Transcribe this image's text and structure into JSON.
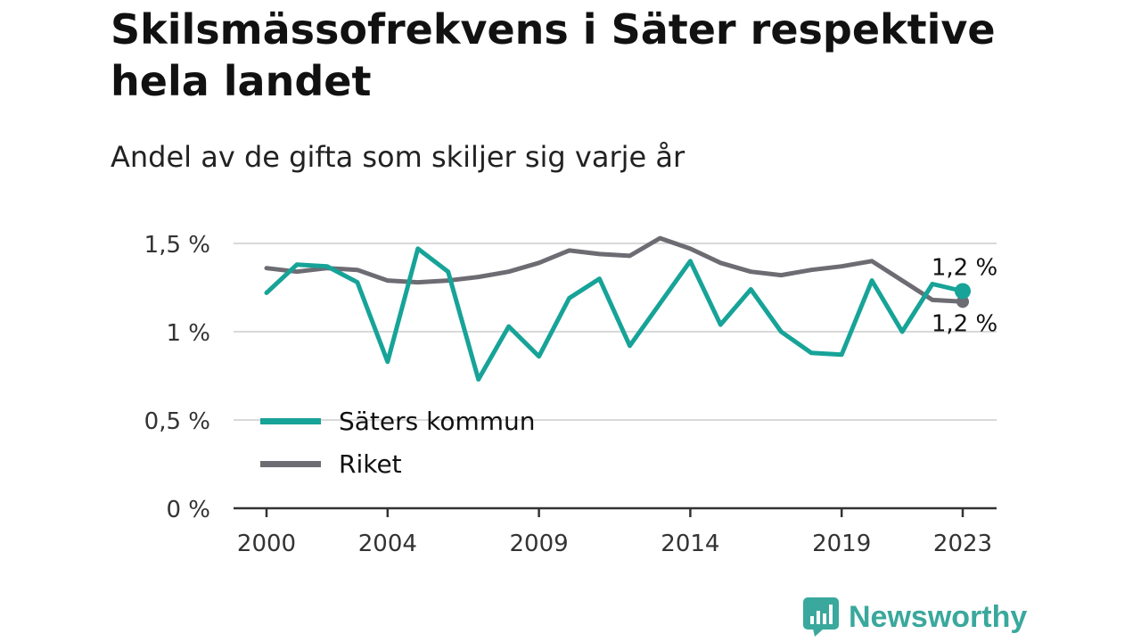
{
  "header": {
    "title": "Skilsmässofrekvens i Säter respektive hela landet",
    "subtitle": "Andel av de gifta som skiljer sig varje år"
  },
  "brand": {
    "name": "Newsworthy",
    "icon": "newsworthy-logo-icon",
    "color": "#3aa89c"
  },
  "chart_data": {
    "type": "line",
    "x": [
      2000,
      2001,
      2002,
      2003,
      2004,
      2005,
      2006,
      2007,
      2008,
      2009,
      2010,
      2011,
      2012,
      2013,
      2014,
      2015,
      2016,
      2017,
      2018,
      2019,
      2020,
      2021,
      2022,
      2023
    ],
    "x_tick_values": [
      2000,
      2004,
      2009,
      2014,
      2019,
      2023
    ],
    "x_tick_labels": [
      "2000",
      "2004",
      "2009",
      "2014",
      "2019",
      "2023"
    ],
    "ylim": [
      0,
      1.5
    ],
    "y_tick_values": [
      0,
      0.5,
      1,
      1.5
    ],
    "y_tick_labels": [
      "0 %",
      "0,5 %",
      "1 %",
      "1,5 %"
    ],
    "grid": true,
    "legend_placement": "bottom-left",
    "series": [
      {
        "name": "Säters kommun",
        "color": "#17a398",
        "values": [
          1.22,
          1.38,
          1.37,
          1.28,
          0.83,
          1.47,
          1.34,
          0.73,
          1.03,
          0.86,
          1.19,
          1.3,
          0.92,
          1.16,
          1.4,
          1.04,
          1.24,
          1.0,
          0.88,
          0.87,
          1.29,
          1.0,
          1.27,
          1.23
        ],
        "end_label": "1,2 %"
      },
      {
        "name": "Riket",
        "color": "#6e6c73",
        "values": [
          1.36,
          1.34,
          1.36,
          1.35,
          1.29,
          1.28,
          1.29,
          1.31,
          1.34,
          1.39,
          1.46,
          1.44,
          1.43,
          1.53,
          1.47,
          1.39,
          1.34,
          1.32,
          1.35,
          1.37,
          1.4,
          1.29,
          1.18,
          1.17
        ],
        "end_label": "1,2 %"
      }
    ]
  }
}
